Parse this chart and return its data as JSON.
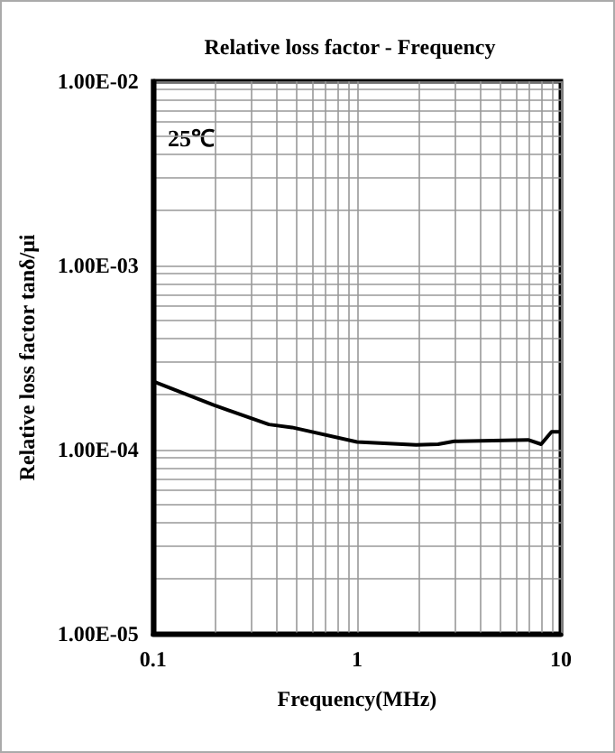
{
  "chart_data": {
    "type": "line",
    "title": "Relative loss factor - Frequency",
    "xlabel": "Frequency(MHz)",
    "ylabel": "Relative loss factor tanδ/μi",
    "annotations": [
      "25℃"
    ],
    "log": "xy",
    "grid": true,
    "marker": "none",
    "line_style": "solid",
    "xlim": [
      0.1,
      10
    ],
    "xticks": [
      0.1,
      1,
      10
    ],
    "ylim": [
      1e-05,
      0.01
    ],
    "yticks": [
      {
        "value": 1e-05,
        "label": "1.00E-05"
      },
      {
        "value": 0.0001,
        "label": "1.00E-04"
      },
      {
        "value": 0.001,
        "label": "1.00E-03"
      },
      {
        "value": 0.01,
        "label": "1.00E-02"
      }
    ],
    "series": [
      {
        "color": "#000000",
        "x": [
          0.1,
          0.197,
          0.37,
          0.48,
          1.0,
          1.95,
          2.5,
          3.0,
          6.9,
          8.0,
          9.0,
          9.9
        ],
        "values": [
          0.000235,
          0.000175,
          0.000137,
          0.000132,
          0.00011,
          0.000106,
          0.000107,
          0.000111,
          0.000113,
          0.000107,
          0.000125,
          0.000125
        ]
      }
    ]
  }
}
